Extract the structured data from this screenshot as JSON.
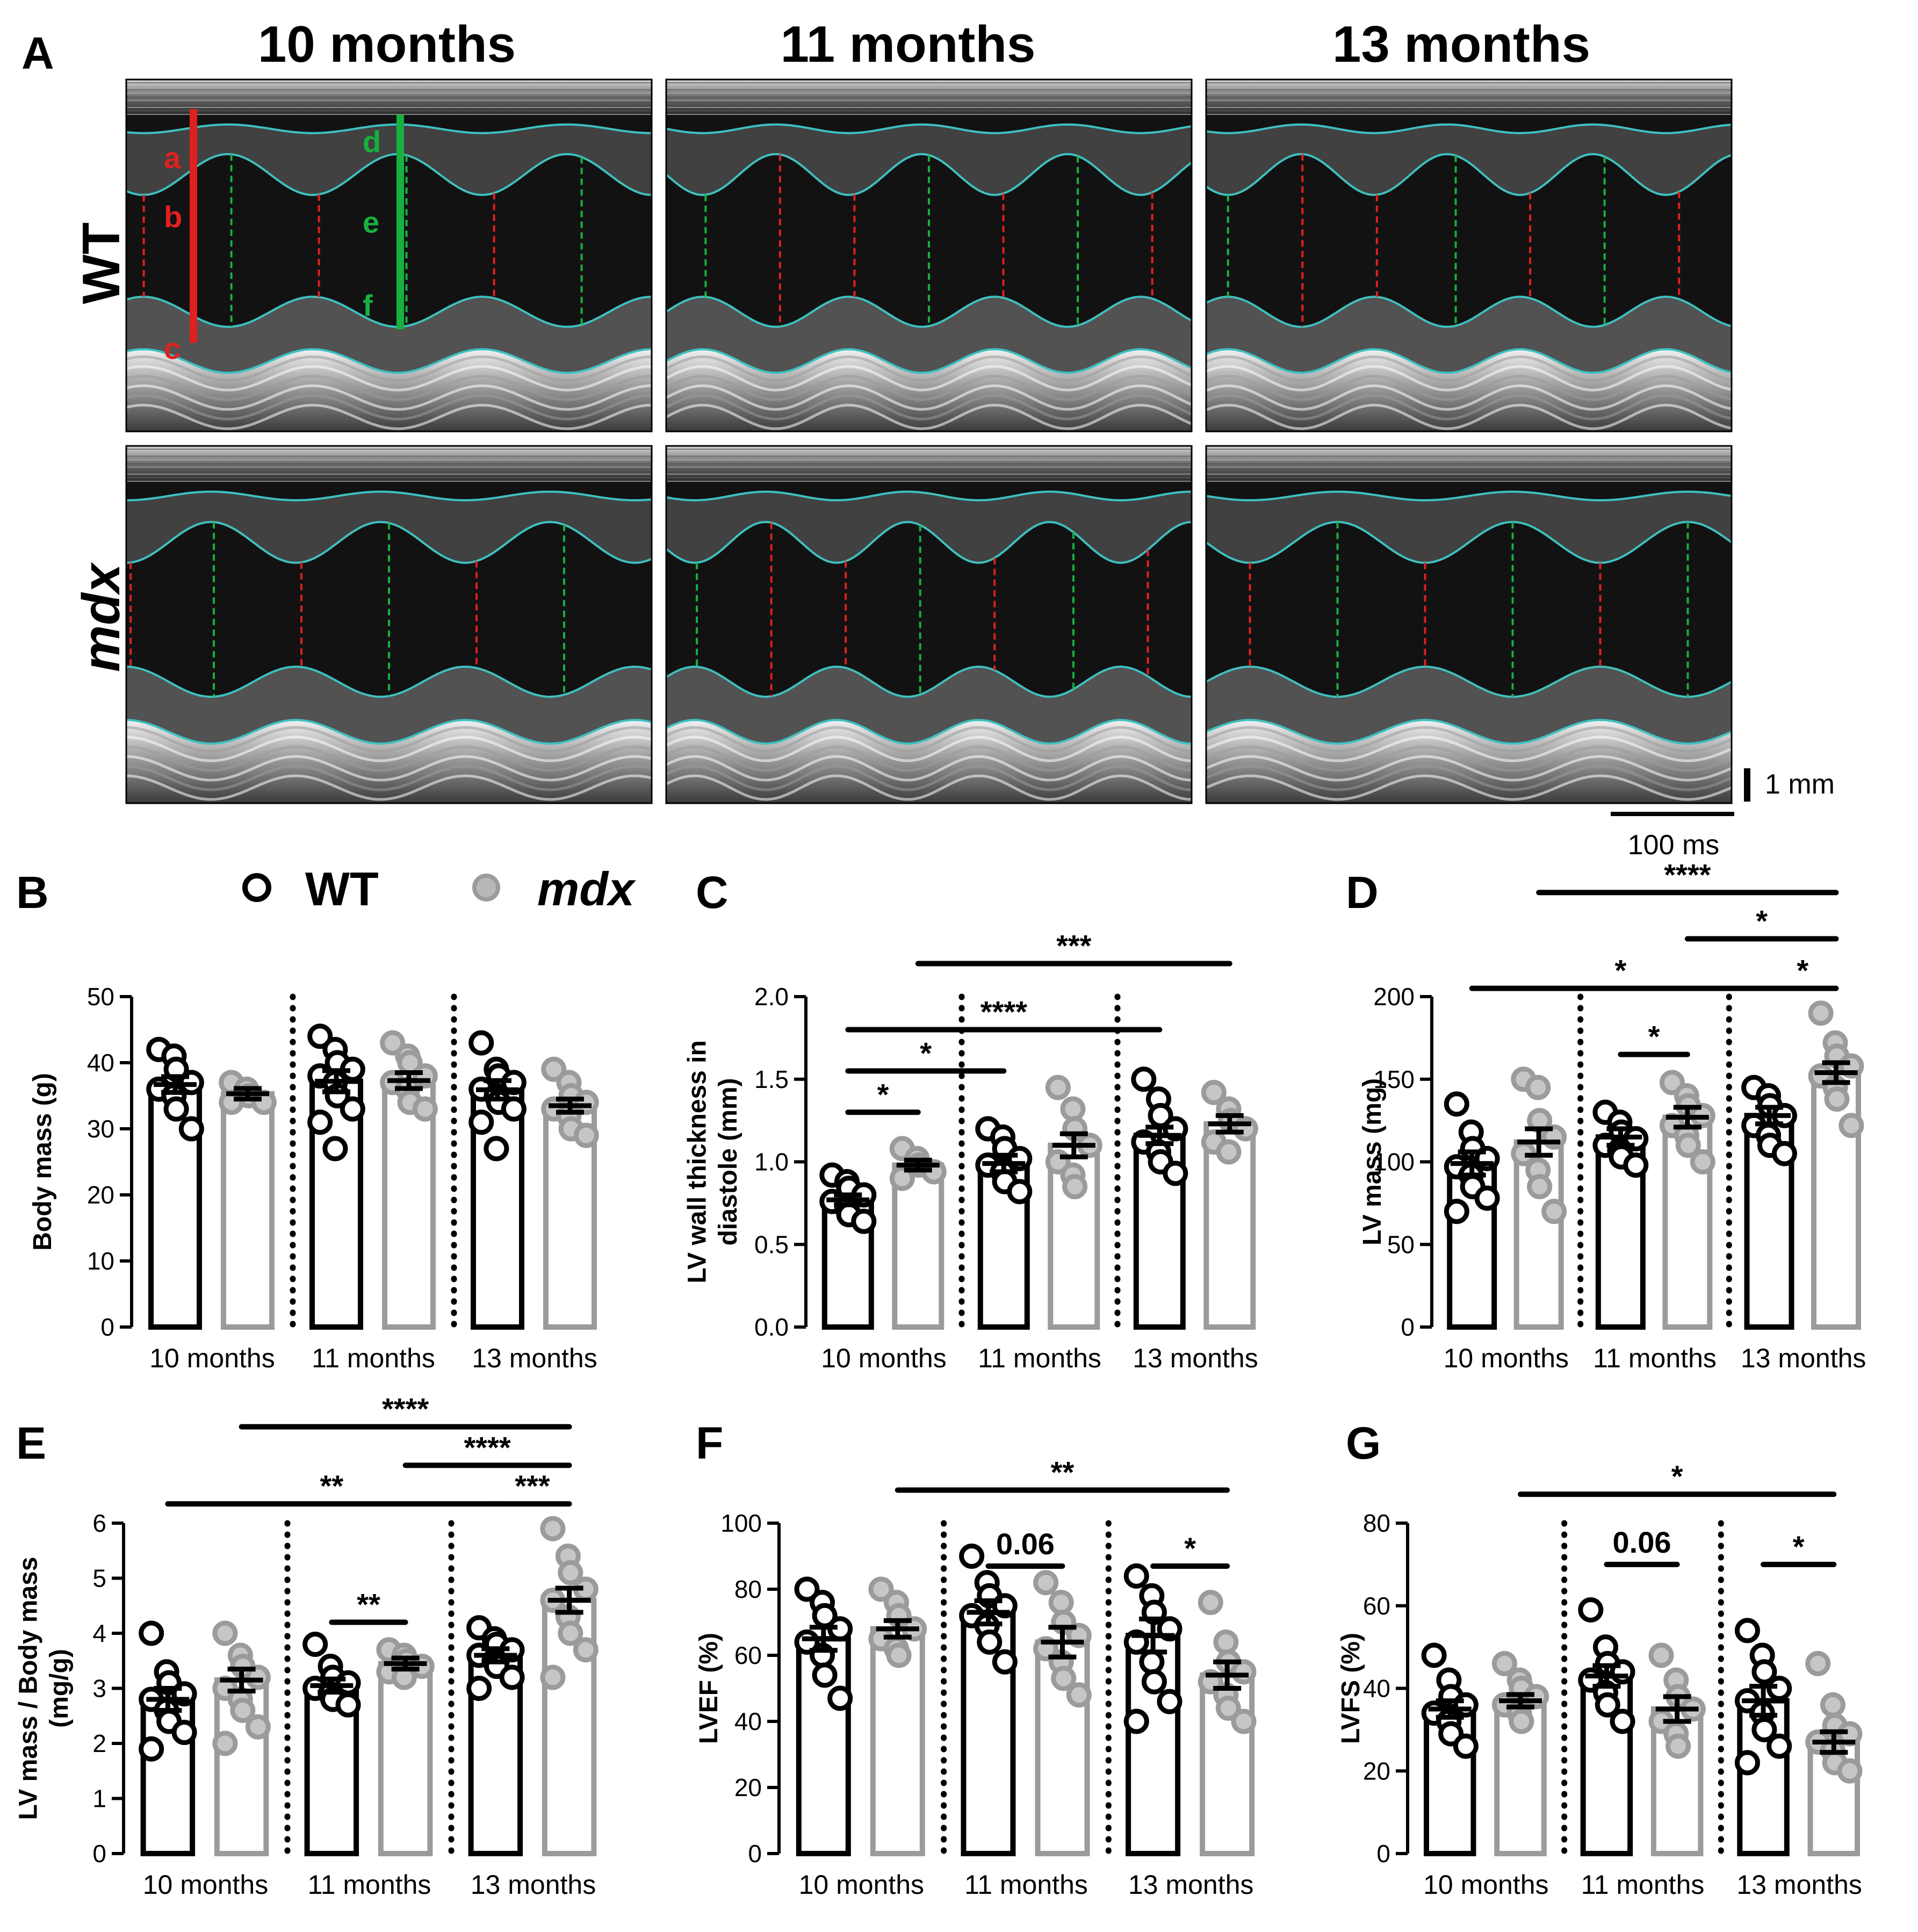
{
  "panelA": {
    "letter": "A",
    "columns": [
      "10 months",
      "11 months",
      "13 months"
    ],
    "rows": [
      "WT",
      "mdx"
    ],
    "markers_red": [
      "a",
      "b",
      "c"
    ],
    "markers_green": [
      "d",
      "e",
      "f"
    ],
    "scale_vertical": "1 mm",
    "scale_horizontal": "100 ms"
  },
  "legend": {
    "wt": "WT",
    "mdx": "mdx",
    "wt_color": "#000000",
    "mdx_color": "#9b9b9b"
  },
  "colors": {
    "wt": "#000000",
    "mdx": "#9b9b9b",
    "trace": "#3fc0c0",
    "red_line": "#e02020",
    "green_line": "#18b040"
  },
  "chart_data": [
    {
      "letter": "B",
      "type": "bar",
      "ylabel": "Body mass (g)",
      "ylim": [
        0,
        50
      ],
      "yticks": [
        0,
        10,
        20,
        30,
        40,
        50
      ],
      "categories": [
        "10 months",
        "11 months",
        "13 months"
      ],
      "series": [
        {
          "name": "WT",
          "values": [
            36.7,
            37.2,
            35.9
          ],
          "sem": [
            1.2,
            1.6,
            1.4
          ],
          "points": [
            [
              42,
              41,
              39,
              37,
              36,
              35,
              33,
              30
            ],
            [
              44,
              42,
              40,
              39,
              38,
              37,
              35,
              33,
              31,
              27
            ],
            [
              43,
              39,
              38,
              37,
              36,
              35,
              34,
              33,
              31,
              27
            ]
          ]
        },
        {
          "name": "mdx",
          "values": [
            35.3,
            37.3,
            33.5
          ],
          "sem": [
            0.8,
            1.2,
            1.0
          ],
          "points": [
            [
              37,
              36,
              35,
              34,
              34
            ],
            [
              43,
              41,
              40,
              38,
              37,
              36,
              34,
              33
            ],
            [
              39,
              37,
              35,
              34,
              33,
              32,
              30,
              29
            ]
          ]
        }
      ],
      "brackets": []
    },
    {
      "letter": "C",
      "type": "bar",
      "ylabel": "LV wall thickness in diastole (mm)",
      "ylim": [
        0,
        2.0
      ],
      "yticks": [
        "0.0",
        "0.5",
        "1.0",
        "1.5",
        "2.0"
      ],
      "categories": [
        "10 months",
        "11 months",
        "13 months"
      ],
      "series": [
        {
          "name": "WT",
          "values": [
            0.77,
            0.99,
            1.16
          ],
          "sem": [
            0.03,
            0.05,
            0.05
          ],
          "points": [
            [
              0.92,
              0.88,
              0.84,
              0.8,
              0.76,
              0.72,
              0.68,
              0.64
            ],
            [
              1.2,
              1.15,
              1.08,
              1.02,
              0.98,
              0.94,
              0.88,
              0.82
            ],
            [
              1.5,
              1.38,
              1.28,
              1.2,
              1.12,
              1.06,
              1.0,
              0.93
            ]
          ]
        },
        {
          "name": "mdx",
          "values": [
            0.98,
            1.1,
            1.23
          ],
          "sem": [
            0.03,
            0.07,
            0.05
          ],
          "points": [
            [
              1.08,
              1.02,
              0.98,
              0.94,
              0.9
            ],
            [
              1.45,
              1.32,
              1.2,
              1.1,
              1.0,
              0.92,
              0.85
            ],
            [
              1.42,
              1.32,
              1.25,
              1.2,
              1.12,
              1.06
            ]
          ]
        }
      ],
      "brackets": [
        {
          "from": [
            0,
            0
          ],
          "to": [
            0,
            1
          ],
          "label": "*",
          "y": 1.3
        },
        {
          "from": [
            0,
            0
          ],
          "to": [
            1,
            0
          ],
          "label": "*",
          "y": 1.55
        },
        {
          "from": [
            0,
            0
          ],
          "to": [
            2,
            0
          ],
          "label": "****",
          "y": 1.8
        },
        {
          "from": [
            0,
            1
          ],
          "to": [
            2,
            1
          ],
          "label": "***",
          "y": 2.2
        }
      ]
    },
    {
      "letter": "D",
      "type": "bar",
      "ylabel": "LV mass (mg)",
      "ylim": [
        0,
        200
      ],
      "yticks": [
        0,
        50,
        100,
        150,
        200
      ],
      "categories": [
        "10 months",
        "11 months",
        "13 months"
      ],
      "series": [
        {
          "name": "WT",
          "values": [
            99,
            115,
            128
          ],
          "sem": [
            7,
            5,
            5
          ],
          "points": [
            [
              135,
              118,
              108,
              102,
              97,
              92,
              85,
              78,
              70
            ],
            [
              130,
              124,
              118,
              114,
              110,
              107,
              103,
              98
            ],
            [
              145,
              140,
              134,
              128,
              122,
              116,
              110,
              105
            ]
          ]
        },
        {
          "name": "mdx",
          "values": [
            112,
            127,
            154
          ],
          "sem": [
            8,
            6,
            6
          ],
          "points": [
            [
              150,
              145,
              125,
              115,
              105,
              95,
              85,
              70
            ],
            [
              148,
              140,
              134,
              128,
              122,
              116,
              110,
              100
            ],
            [
              190,
              172,
              164,
              158,
              152,
              145,
              138,
              122
            ]
          ]
        }
      ],
      "brackets": [
        {
          "from": [
            1,
            0
          ],
          "to": [
            1,
            1
          ],
          "label": "*",
          "y": 165
        },
        {
          "from": [
            0,
            0
          ],
          "to": [
            2,
            0
          ],
          "label": "*",
          "y": 205
        },
        {
          "from": [
            2,
            0
          ],
          "to": [
            2,
            1
          ],
          "label": "*",
          "y": 205
        },
        {
          "from": [
            1,
            1
          ],
          "to": [
            2,
            1
          ],
          "label": "*",
          "y": 235
        },
        {
          "from": [
            0,
            1
          ],
          "to": [
            2,
            1
          ],
          "label": "****",
          "y": 263
        }
      ]
    },
    {
      "letter": "E",
      "type": "bar",
      "ylabel": "LV mass / Body mass (mg/g)",
      "ylim": [
        0,
        6
      ],
      "yticks": [
        0,
        1,
        2,
        3,
        4,
        5,
        6
      ],
      "categories": [
        "10 months",
        "11 months",
        "13 months"
      ],
      "series": [
        {
          "name": "WT",
          "values": [
            2.8,
            3.05,
            3.6
          ],
          "sem": [
            0.2,
            0.12,
            0.12
          ],
          "points": [
            [
              4.0,
              3.3,
              3.1,
              2.9,
              2.8,
              2.6,
              2.4,
              2.2,
              1.9
            ],
            [
              3.8,
              3.4,
              3.2,
              3.1,
              3.0,
              2.9,
              2.8,
              2.7
            ],
            [
              4.1,
              3.9,
              3.8,
              3.7,
              3.6,
              3.5,
              3.4,
              3.2,
              3.0
            ]
          ]
        },
        {
          "name": "mdx",
          "values": [
            3.15,
            3.45,
            4.6
          ],
          "sem": [
            0.2,
            0.1,
            0.22
          ],
          "points": [
            [
              4.0,
              3.6,
              3.4,
              3.2,
              3.0,
              2.8,
              2.6,
              2.3,
              2.0
            ],
            [
              3.7,
              3.6,
              3.5,
              3.4,
              3.3,
              3.2
            ],
            [
              5.9,
              5.4,
              5.1,
              4.8,
              4.6,
              4.3,
              4.0,
              3.7,
              3.2
            ]
          ]
        }
      ],
      "brackets": [
        {
          "from": [
            1,
            0
          ],
          "to": [
            1,
            1
          ],
          "label": "**",
          "y": 4.2
        },
        {
          "from": [
            0,
            0
          ],
          "to": [
            2,
            0
          ],
          "label": "**",
          "y": 6.35
        },
        {
          "from": [
            2,
            0
          ],
          "to": [
            2,
            1
          ],
          "label": "***",
          "y": 6.35
        },
        {
          "from": [
            1,
            1
          ],
          "to": [
            2,
            1
          ],
          "label": "****",
          "y": 7.05
        },
        {
          "from": [
            0,
            1
          ],
          "to": [
            2,
            1
          ],
          "label": "****",
          "y": 7.75
        }
      ]
    },
    {
      "letter": "F",
      "type": "bar",
      "ylabel": "LVEF (%)",
      "ylim": [
        0,
        100
      ],
      "yticks": [
        0,
        20,
        40,
        60,
        80,
        100
      ],
      "categories": [
        "10 months",
        "11 months",
        "13 months"
      ],
      "series": [
        {
          "name": "WT",
          "values": [
            65,
            73,
            66
          ],
          "sem": [
            3.5,
            3.5,
            5
          ],
          "points": [
            [
              80,
              76,
              72,
              68,
              64,
              60,
              54,
              47
            ],
            [
              90,
              82,
              78,
              75,
              72,
              69,
              64,
              58
            ],
            [
              84,
              78,
              73,
              68,
              64,
              58,
              52,
              46,
              40
            ]
          ]
        },
        {
          "name": "mdx",
          "values": [
            68,
            64,
            54
          ],
          "sem": [
            2.5,
            4.5,
            4
          ],
          "points": [
            [
              80,
              76,
              72,
              68,
              65,
              62,
              60
            ],
            [
              82,
              76,
              70,
              66,
              62,
              58,
              53,
              48
            ],
            [
              76,
              64,
              58,
              55,
              52,
              48,
              44,
              40
            ]
          ]
        }
      ],
      "brackets": [
        {
          "from": [
            1,
            0
          ],
          "to": [
            1,
            1
          ],
          "label": "0.06",
          "y": 87
        },
        {
          "from": [
            2,
            0
          ],
          "to": [
            2,
            1
          ],
          "label": "*",
          "y": 87
        },
        {
          "from": [
            0,
            1
          ],
          "to": [
            2,
            1
          ],
          "label": "**",
          "y": 110
        }
      ]
    },
    {
      "letter": "G",
      "type": "bar",
      "ylabel": "LVFS (%)",
      "ylim": [
        0,
        80
      ],
      "yticks": [
        0,
        20,
        40,
        60,
        80
      ],
      "categories": [
        "10 months",
        "11 months",
        "13 months"
      ],
      "series": [
        {
          "name": "WT",
          "values": [
            35,
            43,
            37
          ],
          "sem": [
            2,
            2.5,
            3.5
          ],
          "points": [
            [
              48,
              42,
              38,
              36,
              34,
              32,
              29,
              26
            ],
            [
              59,
              50,
              46,
              44,
              42,
              39,
              36,
              32
            ],
            [
              54,
              48,
              44,
              40,
              37,
              34,
              30,
              26,
              22
            ]
          ]
        },
        {
          "name": "mdx",
          "values": [
            37,
            35,
            27
          ],
          "sem": [
            1.5,
            3,
            2.5
          ],
          "points": [
            [
              46,
              42,
              40,
              38,
              36,
              34,
              32
            ],
            [
              48,
              42,
              38,
              35,
              32,
              29,
              26
            ],
            [
              46,
              36,
              31,
              29,
              27,
              25,
              22,
              20
            ]
          ]
        }
      ],
      "brackets": [
        {
          "from": [
            1,
            0
          ],
          "to": [
            1,
            1
          ],
          "label": "0.06",
          "y": 70
        },
        {
          "from": [
            2,
            0
          ],
          "to": [
            2,
            1
          ],
          "label": "*",
          "y": 70
        },
        {
          "from": [
            0,
            1
          ],
          "to": [
            2,
            1
          ],
          "label": "*",
          "y": 87
        }
      ]
    }
  ]
}
